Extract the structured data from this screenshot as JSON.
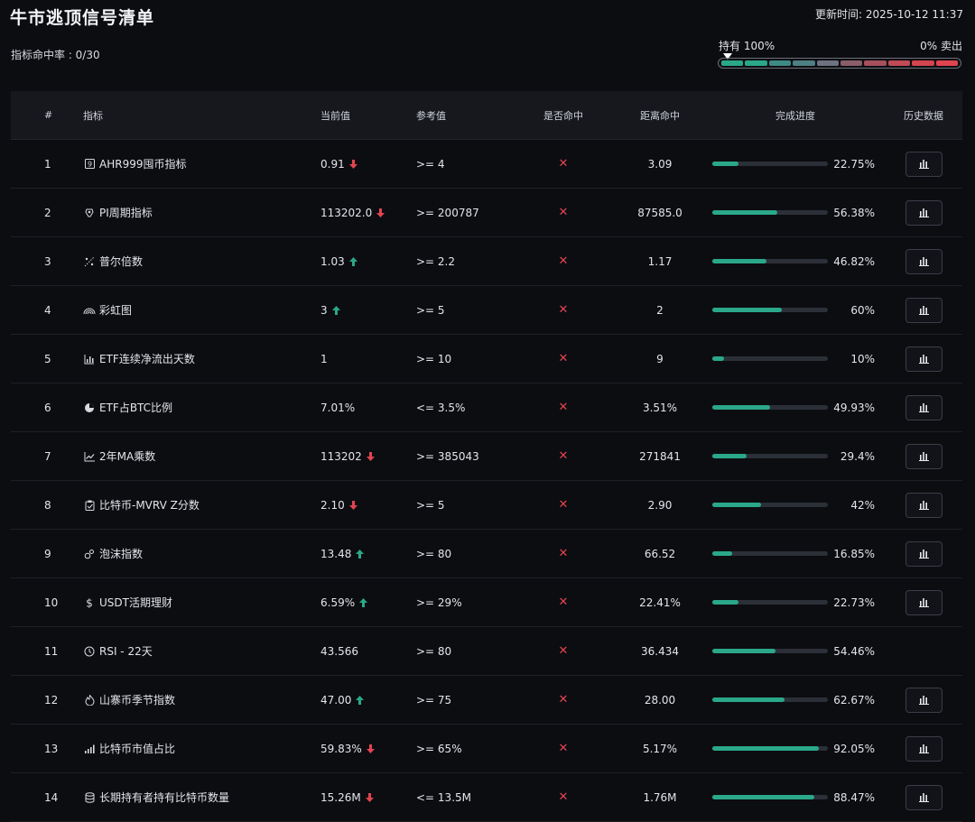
{
  "header": {
    "title": "牛市逃顶信号清单",
    "update_time": "更新时间: 2025-10-12 11:37",
    "hit_rate": "指标命中率 : 0/30"
  },
  "gauge": {
    "left_label": "持有 100%",
    "right_label": "0% 卖出",
    "position_fraction": 0.0,
    "segment_colors": [
      "#2aa889",
      "#2aa889",
      "#3c8a86",
      "#4d7f84",
      "#6d7280",
      "#8a5d6a",
      "#a5505c",
      "#bf4a55",
      "#d4454f",
      "#e2444f"
    ]
  },
  "table": {
    "headers": {
      "num": "#",
      "name": "指标",
      "current": "当前值",
      "reference": "参考值",
      "hit": "是否命中",
      "distance": "距离命中",
      "progress": "完成进度",
      "history": "历史数据"
    },
    "rows": [
      {
        "num": "1",
        "icon": "ahr-icon",
        "name": "AHR999囤币指标",
        "current": "0.91",
        "trend": "down",
        "reference": ">= 4",
        "hit": "✕",
        "distance": "3.09",
        "progress_pct": "22.75%",
        "progress": 0.2275,
        "history": true
      },
      {
        "num": "2",
        "icon": "pi-cycle-icon",
        "name": "PI周期指标",
        "current": "113202.0",
        "trend": "down",
        "reference": ">= 200787",
        "hit": "✕",
        "distance": "87585.0",
        "progress_pct": "56.38%",
        "progress": 0.5638,
        "history": true
      },
      {
        "num": "3",
        "icon": "puell-icon",
        "name": "普尔倍数",
        "current": "1.03",
        "trend": "up",
        "reference": ">= 2.2",
        "hit": "✕",
        "distance": "1.17",
        "progress_pct": "46.82%",
        "progress": 0.4682,
        "history": true
      },
      {
        "num": "4",
        "icon": "rainbow-icon",
        "name": "彩虹图",
        "current": "3",
        "trend": "up",
        "reference": ">= 5",
        "hit": "✕",
        "distance": "2",
        "progress_pct": "60%",
        "progress": 0.6,
        "history": true
      },
      {
        "num": "5",
        "icon": "bar-chart-icon",
        "name": "ETF连续净流出天数",
        "current": "1",
        "trend": "",
        "reference": ">= 10",
        "hit": "✕",
        "distance": "9",
        "progress_pct": "10%",
        "progress": 0.1,
        "history": true
      },
      {
        "num": "6",
        "icon": "pie-chart-icon",
        "name": "ETF占BTC比例",
        "current": "7.01%",
        "trend": "",
        "reference": "<= 3.5%",
        "hit": "✕",
        "distance": "3.51%",
        "progress_pct": "49.93%",
        "progress": 0.4993,
        "history": true
      },
      {
        "num": "7",
        "icon": "line-chart-icon",
        "name": "2年MA乘数",
        "current": "113202",
        "trend": "down",
        "reference": ">= 385043",
        "hit": "✕",
        "distance": "271841",
        "progress_pct": "29.4%",
        "progress": 0.294,
        "history": true
      },
      {
        "num": "8",
        "icon": "clipboard-icon",
        "name": "比特币-MVRV Z分数",
        "current": "2.10",
        "trend": "down",
        "reference": ">= 5",
        "hit": "✕",
        "distance": "2.90",
        "progress_pct": "42%",
        "progress": 0.42,
        "history": true
      },
      {
        "num": "9",
        "icon": "bubble-icon",
        "name": "泡沫指数",
        "current": "13.48",
        "trend": "up",
        "reference": ">= 80",
        "hit": "✕",
        "distance": "66.52",
        "progress_pct": "16.85%",
        "progress": 0.1685,
        "history": true
      },
      {
        "num": "10",
        "icon": "dollar-icon",
        "name": "USDT活期理财",
        "current": "6.59%",
        "trend": "up",
        "reference": ">= 29%",
        "hit": "✕",
        "distance": "22.41%",
        "progress_pct": "22.73%",
        "progress": 0.2273,
        "history": true
      },
      {
        "num": "11",
        "icon": "clock-icon",
        "name": "RSI - 22天",
        "current": "43.566",
        "trend": "",
        "reference": ">= 80",
        "hit": "✕",
        "distance": "36.434",
        "progress_pct": "54.46%",
        "progress": 0.5446,
        "history": false
      },
      {
        "num": "12",
        "icon": "flame-icon",
        "name": "山寨币季节指数",
        "current": "47.00",
        "trend": "up",
        "reference": ">= 75",
        "hit": "✕",
        "distance": "28.00",
        "progress_pct": "62.67%",
        "progress": 0.6267,
        "history": true
      },
      {
        "num": "13",
        "icon": "signal-icon",
        "name": "比特币市值占比",
        "current": "59.83%",
        "trend": "down",
        "reference": ">= 65%",
        "hit": "✕",
        "distance": "5.17%",
        "progress_pct": "92.05%",
        "progress": 0.9205,
        "history": true
      },
      {
        "num": "14",
        "icon": "database-icon",
        "name": "长期持有者持有比特币数量",
        "current": "15.26M",
        "trend": "down",
        "reference": "<= 13.5M",
        "hit": "✕",
        "distance": "1.76M",
        "progress_pct": "88.47%",
        "progress": 0.8847,
        "history": true
      }
    ]
  }
}
